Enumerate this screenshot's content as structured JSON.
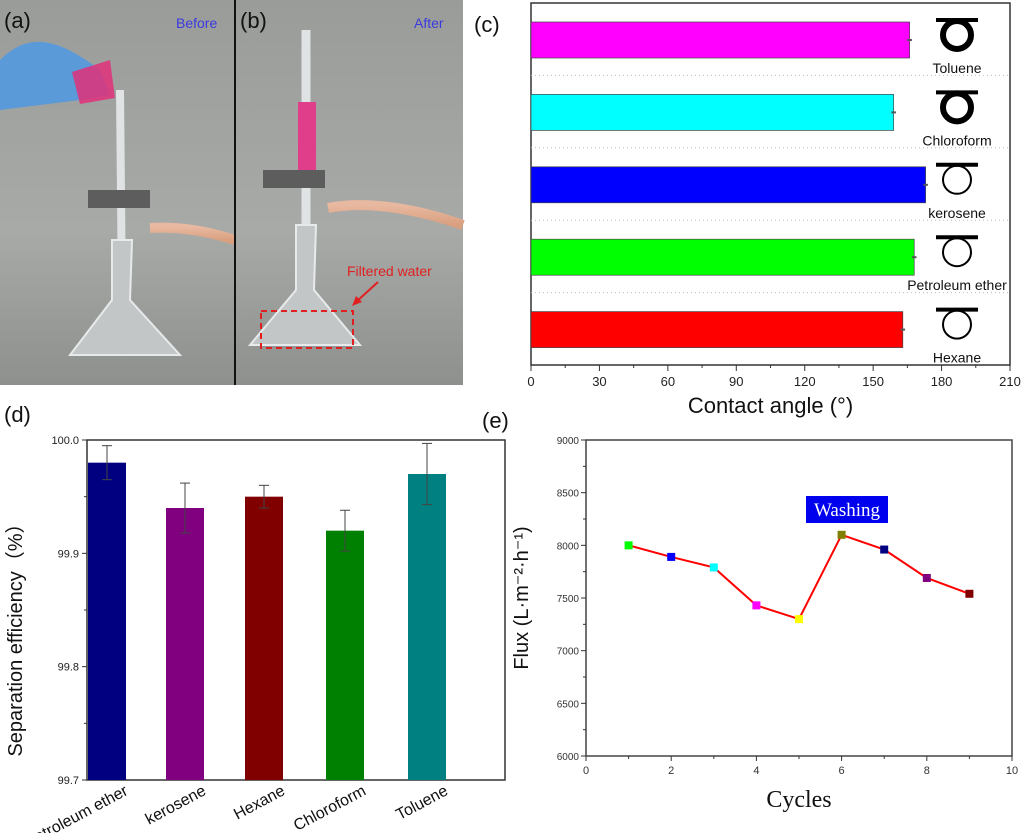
{
  "panels": {
    "a": {
      "label": "(a)",
      "caption": "Before"
    },
    "b": {
      "label": "(b)",
      "caption": "After",
      "annotation": "Filtered water"
    },
    "c": {
      "label": "(c)"
    },
    "d": {
      "label": "(d)"
    },
    "e": {
      "label": "(e)"
    }
  },
  "colors": {
    "annotation": "#e02020",
    "caption": "#3a3adf"
  },
  "chart_data": [
    {
      "id": "c",
      "type": "bar",
      "orientation": "horizontal",
      "categories": [
        "Toluene",
        "Chloroform",
        "kerosene",
        "Petroleum ether",
        "Hexane"
      ],
      "values": [
        166,
        159,
        173,
        168,
        163
      ],
      "errors": [
        1,
        1,
        1,
        1,
        1
      ],
      "colors": [
        "#ff00ff",
        "#00ffff",
        "#0000ff",
        "#00ff00",
        "#ff0000"
      ],
      "xlabel": "Contact angle (°)",
      "xlim": [
        0,
        210
      ],
      "xticks": [
        "0",
        "30",
        "60",
        "90",
        "120",
        "150",
        "180",
        "210"
      ]
    },
    {
      "id": "d",
      "type": "bar",
      "categories": [
        "Petroleum ether",
        "kerosene",
        "Hexane",
        "Chloroform",
        "Toluene"
      ],
      "values": [
        99.98,
        99.94,
        99.95,
        99.92,
        99.97
      ],
      "errors": [
        0.015,
        0.022,
        0.01,
        0.018,
        0.027
      ],
      "colors": [
        "#000080",
        "#800080",
        "#800000",
        "#008000",
        "#008080"
      ],
      "ylabel": "Separation efficiency（%）",
      "ylim": [
        99.7,
        100.0
      ],
      "yticks": [
        "99.7",
        "99.8",
        "99.9",
        "100.0"
      ]
    },
    {
      "id": "e",
      "type": "line",
      "x": [
        1,
        2,
        3,
        4,
        5,
        6,
        7,
        8,
        9
      ],
      "y": [
        8000,
        7890,
        7790,
        7430,
        7300,
        8100,
        7960,
        7690,
        7540
      ],
      "marker_colors": [
        "#00ff00",
        "#0000ff",
        "#00ffff",
        "#ff00ff",
        "#ffff00",
        "#808000",
        "#000080",
        "#800080",
        "#800000"
      ],
      "line_color": "#ff0000",
      "xlabel": "Cycles",
      "ylabel": "Flux (L·m⁻²·h⁻¹)",
      "xlim": [
        0,
        10
      ],
      "ylim": [
        6000,
        9000
      ],
      "xticks": [
        "0",
        "2",
        "4",
        "6",
        "8",
        "10"
      ],
      "yticks": [
        "6000",
        "6500",
        "7000",
        "7500",
        "8000",
        "8500",
        "9000"
      ],
      "annotation": "Washing"
    }
  ]
}
